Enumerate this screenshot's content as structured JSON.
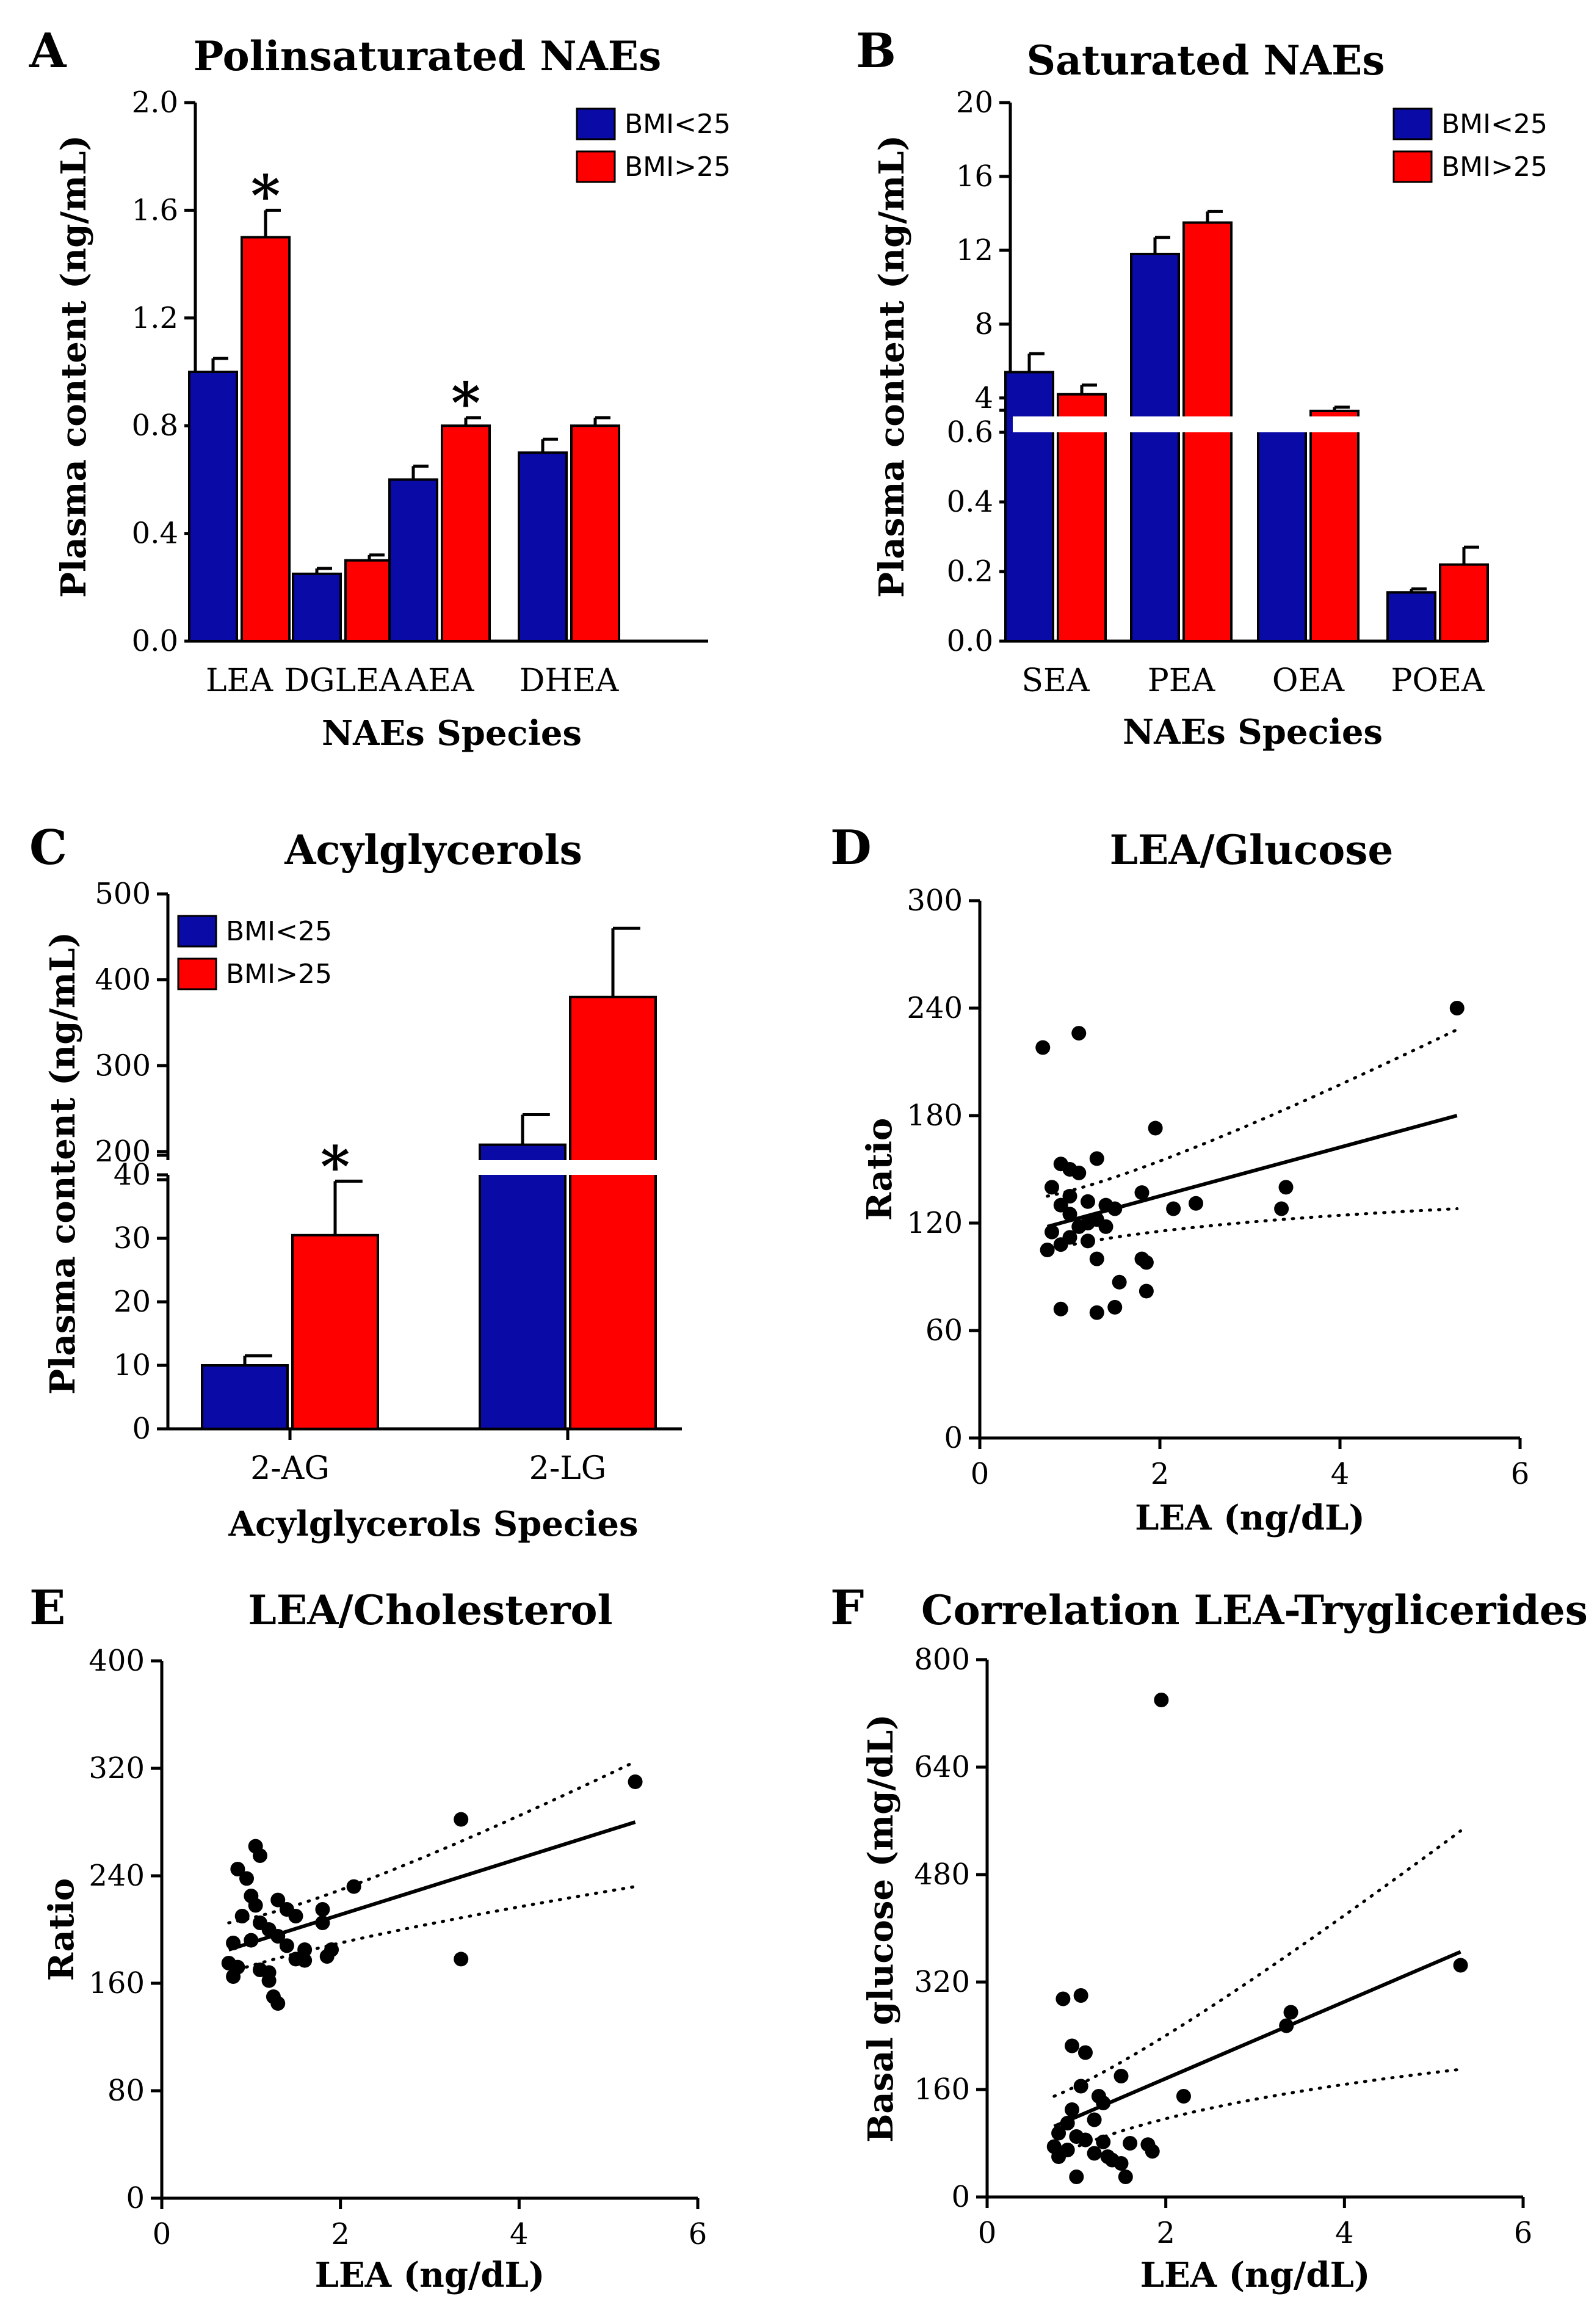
{
  "colors": {
    "bmi_low": "#0a0aa6",
    "bmi_high": "#ff0000"
  },
  "chart_data": [
    {
      "id": "A",
      "type": "bar",
      "panel_letter": "A",
      "title": "Polinsaturated NAEs",
      "xlabel": "NAEs Species",
      "ylabel": "Plasma content (ng/mL)",
      "categories": [
        "LEA",
        "DGLEA",
        "AEA",
        "DHEA"
      ],
      "series": [
        {
          "name": "BMI<25",
          "values": [
            1.0,
            0.25,
            0.6,
            0.7
          ],
          "errors": [
            0.05,
            0.02,
            0.05,
            0.05
          ]
        },
        {
          "name": "BMI>25",
          "values": [
            1.5,
            0.3,
            0.8,
            0.8
          ],
          "errors": [
            0.1,
            0.02,
            0.03,
            0.03
          ]
        }
      ],
      "significance": [
        "*",
        "",
        "*",
        ""
      ],
      "ylim": [
        0,
        2.0
      ],
      "yticks": [
        "0.0",
        "0.4",
        "0.8",
        "1.2",
        "1.6",
        "2.0"
      ],
      "legend": "top-right"
    },
    {
      "id": "B",
      "type": "bar",
      "panel_letter": "B",
      "title": "Saturated NAEs",
      "xlabel": "NAEs Species",
      "ylabel": "Plasma content (ng/mL)",
      "categories": [
        "SEA",
        "PEA",
        "OEA",
        "POEA"
      ],
      "series": [
        {
          "name": "BMI<25",
          "values": [
            5.4,
            11.8,
            2.6,
            0.14
          ],
          "errors": [
            1.0,
            0.9,
            0.2,
            0.01
          ]
        },
        {
          "name": "BMI>25",
          "values": [
            4.2,
            13.5,
            3.3,
            0.22
          ],
          "errors": [
            0.5,
            0.6,
            0.2,
            0.05
          ]
        }
      ],
      "y_axis_break": {
        "lower": [
          0,
          0.6
        ],
        "upper": [
          3,
          20
        ]
      },
      "yticks_lower": [
        "0.0",
        "0.2",
        "0.4",
        "0.6"
      ],
      "yticks_upper": [
        "4",
        "8",
        "12",
        "16",
        "20"
      ],
      "legend": "top-right"
    },
    {
      "id": "C",
      "type": "bar",
      "panel_letter": "C",
      "title": "Acylglycerols",
      "xlabel": "Acylglycerols Species",
      "ylabel": "Plasma content (ng/mL)",
      "categories": [
        "2-AG",
        "2-LG"
      ],
      "series": [
        {
          "name": "BMI<25",
          "values": [
            10,
            208
          ],
          "errors": [
            1.5,
            35
          ]
        },
        {
          "name": "BMI>25",
          "values": [
            30.5,
            380
          ],
          "errors": [
            8.5,
            80
          ]
        }
      ],
      "significance": [
        "*",
        ""
      ],
      "y_axis_break": {
        "lower": [
          0,
          40
        ],
        "upper": [
          190,
          500
        ]
      },
      "yticks_lower": [
        "0",
        "10",
        "20",
        "30",
        "40"
      ],
      "yticks_upper": [
        "200",
        "300",
        "400",
        "500"
      ],
      "legend": "top-left"
    },
    {
      "id": "D",
      "type": "scatter",
      "panel_letter": "D",
      "title": "LEA/Glucose",
      "xlabel": "LEA (ng/dL)",
      "ylabel": "Ratio",
      "xlim": [
        0,
        6
      ],
      "ylim": [
        0,
        300
      ],
      "xticks": [
        "0",
        "2",
        "4",
        "6"
      ],
      "yticks": [
        "0",
        "60",
        "120",
        "180",
        "240",
        "300"
      ],
      "points": [
        [
          0.7,
          218
        ],
        [
          1.1,
          226
        ],
        [
          0.9,
          153
        ],
        [
          1.0,
          150
        ],
        [
          1.3,
          156
        ],
        [
          1.1,
          148
        ],
        [
          0.8,
          140
        ],
        [
          1.0,
          135
        ],
        [
          1.2,
          132
        ],
        [
          1.4,
          130
        ],
        [
          1.5,
          128
        ],
        [
          0.9,
          130
        ],
        [
          1.0,
          125
        ],
        [
          1.2,
          120
        ],
        [
          1.1,
          118
        ],
        [
          1.3,
          122
        ],
        [
          1.4,
          118
        ],
        [
          0.8,
          115
        ],
        [
          1.0,
          112
        ],
        [
          0.9,
          108
        ],
        [
          1.2,
          110
        ],
        [
          0.75,
          105
        ],
        [
          1.3,
          100
        ],
        [
          1.8,
          137
        ],
        [
          1.95,
          173
        ],
        [
          2.15,
          128
        ],
        [
          2.4,
          131
        ],
        [
          3.35,
          128
        ],
        [
          3.4,
          140
        ],
        [
          5.3,
          240
        ],
        [
          1.55,
          87
        ],
        [
          1.8,
          100
        ],
        [
          1.85,
          98
        ],
        [
          1.85,
          82
        ],
        [
          1.3,
          70
        ],
        [
          1.5,
          73
        ],
        [
          0.9,
          72
        ]
      ],
      "fit": {
        "x": [
          0.75,
          5.3
        ],
        "y": [
          118,
          180
        ]
      },
      "ci_upper": [
        [
          0.75,
          135
        ],
        [
          2.0,
          148
        ],
        [
          5.3,
          228
        ]
      ],
      "ci_lower": [
        [
          0.75,
          105
        ],
        [
          2.0,
          120
        ],
        [
          5.3,
          128
        ]
      ]
    },
    {
      "id": "E",
      "type": "scatter",
      "panel_letter": "E",
      "title": "LEA/Cholesterol",
      "xlabel": "LEA (ng/dL)",
      "ylabel": "Ratio",
      "xlim": [
        0,
        6
      ],
      "ylim": [
        0,
        400
      ],
      "xticks": [
        "0",
        "2",
        "4",
        "6"
      ],
      "yticks": [
        "0",
        "80",
        "160",
        "240",
        "320",
        "400"
      ],
      "points": [
        [
          1.05,
          262
        ],
        [
          1.1,
          255
        ],
        [
          0.85,
          245
        ],
        [
          0.95,
          238
        ],
        [
          1.0,
          225
        ],
        [
          1.3,
          222
        ],
        [
          1.05,
          218
        ],
        [
          1.4,
          215
        ],
        [
          1.5,
          210
        ],
        [
          1.8,
          215
        ],
        [
          2.15,
          232
        ],
        [
          0.9,
          210
        ],
        [
          1.1,
          205
        ],
        [
          1.2,
          200
        ],
        [
          1.3,
          195
        ],
        [
          1.0,
          192
        ],
        [
          0.8,
          190
        ],
        [
          1.4,
          188
        ],
        [
          1.6,
          185
        ],
        [
          1.8,
          205
        ],
        [
          1.9,
          185
        ],
        [
          1.85,
          180
        ],
        [
          1.5,
          178
        ],
        [
          1.6,
          177
        ],
        [
          0.75,
          175
        ],
        [
          0.85,
          172
        ],
        [
          1.1,
          170
        ],
        [
          1.2,
          168
        ],
        [
          0.8,
          165
        ],
        [
          1.2,
          162
        ],
        [
          1.25,
          150
        ],
        [
          1.3,
          145
        ],
        [
          3.35,
          282
        ],
        [
          3.35,
          178
        ],
        [
          5.3,
          310
        ]
      ],
      "fit": {
        "x": [
          0.75,
          5.3
        ],
        "y": [
          185,
          280
        ]
      },
      "ci_upper": [
        [
          0.75,
          205
        ],
        [
          2.0,
          220
        ],
        [
          5.3,
          325
        ]
      ],
      "ci_lower": [
        [
          0.75,
          168
        ],
        [
          2.0,
          195
        ],
        [
          5.3,
          232
        ]
      ]
    },
    {
      "id": "F",
      "type": "scatter",
      "panel_letter": "F",
      "title": "Correlation LEA-Tryglicerides",
      "xlabel": "LEA (ng/dL)",
      "ylabel": "Basal glucose (mg/dL)",
      "xlim": [
        0,
        6
      ],
      "ylim": [
        0,
        800
      ],
      "xticks": [
        "0",
        "2",
        "4",
        "6"
      ],
      "yticks": [
        "0",
        "160",
        "320",
        "480",
        "640",
        "800"
      ],
      "points": [
        [
          1.95,
          740
        ],
        [
          0.85,
          295
        ],
        [
          1.05,
          300
        ],
        [
          0.95,
          225
        ],
        [
          1.1,
          215
        ],
        [
          1.5,
          180
        ],
        [
          1.05,
          165
        ],
        [
          1.25,
          150
        ],
        [
          1.3,
          140
        ],
        [
          0.95,
          130
        ],
        [
          1.2,
          115
        ],
        [
          0.9,
          110
        ],
        [
          0.8,
          95
        ],
        [
          1.0,
          90
        ],
        [
          1.1,
          85
        ],
        [
          1.3,
          82
        ],
        [
          1.6,
          80
        ],
        [
          1.8,
          78
        ],
        [
          0.75,
          75
        ],
        [
          0.9,
          70
        ],
        [
          1.2,
          65
        ],
        [
          1.35,
          60
        ],
        [
          1.4,
          55
        ],
        [
          1.85,
          68
        ],
        [
          0.8,
          60
        ],
        [
          1.5,
          50
        ],
        [
          1.0,
          30
        ],
        [
          1.55,
          30
        ],
        [
          2.2,
          150
        ],
        [
          3.35,
          255
        ],
        [
          3.4,
          275
        ],
        [
          5.3,
          345
        ]
      ],
      "fit": {
        "x": [
          0.75,
          5.3
        ],
        "y": [
          105,
          365
        ]
      },
      "ci_upper": [
        [
          0.75,
          150
        ],
        [
          2.0,
          220
        ],
        [
          5.3,
          545
        ]
      ],
      "ci_lower": [
        [
          0.75,
          60
        ],
        [
          2.0,
          140
        ],
        [
          5.3,
          190
        ]
      ]
    }
  ]
}
